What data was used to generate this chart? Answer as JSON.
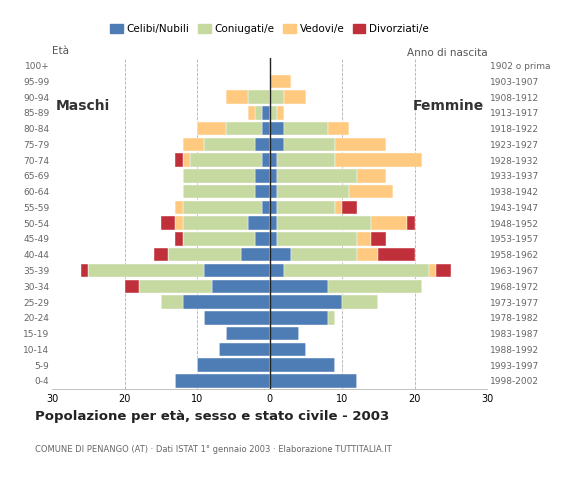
{
  "age_groups": [
    "0-4",
    "5-9",
    "10-14",
    "15-19",
    "20-24",
    "25-29",
    "30-34",
    "35-39",
    "40-44",
    "45-49",
    "50-54",
    "55-59",
    "60-64",
    "65-69",
    "70-74",
    "75-79",
    "80-84",
    "85-89",
    "90-94",
    "95-99",
    "100+"
  ],
  "birth_years": [
    "1998-2002",
    "1993-1997",
    "1988-1992",
    "1983-1987",
    "1978-1982",
    "1973-1977",
    "1968-1972",
    "1963-1967",
    "1958-1962",
    "1953-1957",
    "1948-1952",
    "1943-1947",
    "1938-1942",
    "1933-1937",
    "1928-1932",
    "1923-1927",
    "1918-1922",
    "1913-1917",
    "1908-1912",
    "1903-1907",
    "1902 o prima"
  ],
  "male_celibi": [
    13,
    10,
    7,
    6,
    9,
    12,
    8,
    9,
    4,
    2,
    3,
    1,
    2,
    2,
    1,
    2,
    1,
    1,
    0,
    0,
    0
  ],
  "male_coniugati": [
    0,
    0,
    0,
    0,
    0,
    3,
    10,
    16,
    10,
    10,
    9,
    11,
    10,
    10,
    10,
    7,
    5,
    1,
    3,
    0,
    0
  ],
  "male_vedovi": [
    0,
    0,
    0,
    0,
    0,
    0,
    0,
    0,
    0,
    0,
    1,
    1,
    0,
    0,
    1,
    3,
    4,
    1,
    3,
    0,
    0
  ],
  "male_divorziati": [
    0,
    0,
    0,
    0,
    0,
    0,
    2,
    1,
    2,
    1,
    2,
    0,
    0,
    0,
    1,
    0,
    0,
    0,
    0,
    0,
    0
  ],
  "female_celibi": [
    12,
    9,
    5,
    4,
    8,
    10,
    8,
    2,
    3,
    1,
    1,
    1,
    1,
    1,
    1,
    2,
    2,
    0,
    0,
    0,
    0
  ],
  "female_coniugati": [
    0,
    0,
    0,
    0,
    1,
    5,
    13,
    20,
    9,
    11,
    13,
    8,
    10,
    11,
    8,
    7,
    6,
    1,
    2,
    0,
    0
  ],
  "female_vedovi": [
    0,
    0,
    0,
    0,
    0,
    0,
    0,
    1,
    3,
    2,
    5,
    1,
    6,
    4,
    12,
    7,
    3,
    1,
    3,
    3,
    0
  ],
  "female_divorziati": [
    0,
    0,
    0,
    0,
    0,
    0,
    0,
    2,
    5,
    2,
    1,
    2,
    0,
    0,
    0,
    0,
    0,
    0,
    0,
    0,
    0
  ],
  "color_celibi": "#4e7db5",
  "color_coniugati": "#c6d9a0",
  "color_vedovi": "#ffc980",
  "color_divorziati": "#c0303a",
  "title": "Popolazione per età, sesso e stato civile - 2003",
  "subtitle": "COMUNE DI PENANGO (AT) · Dati ISTAT 1° gennaio 2003 · Elaborazione TUTTITALIA.IT",
  "ylabel_left": "Età",
  "ylabel_right": "Anno di nascita",
  "label_maschi": "Maschi",
  "label_femmine": "Femmine",
  "xlim": 30,
  "background_color": "#ffffff",
  "grid_color": "#b0b0b0"
}
